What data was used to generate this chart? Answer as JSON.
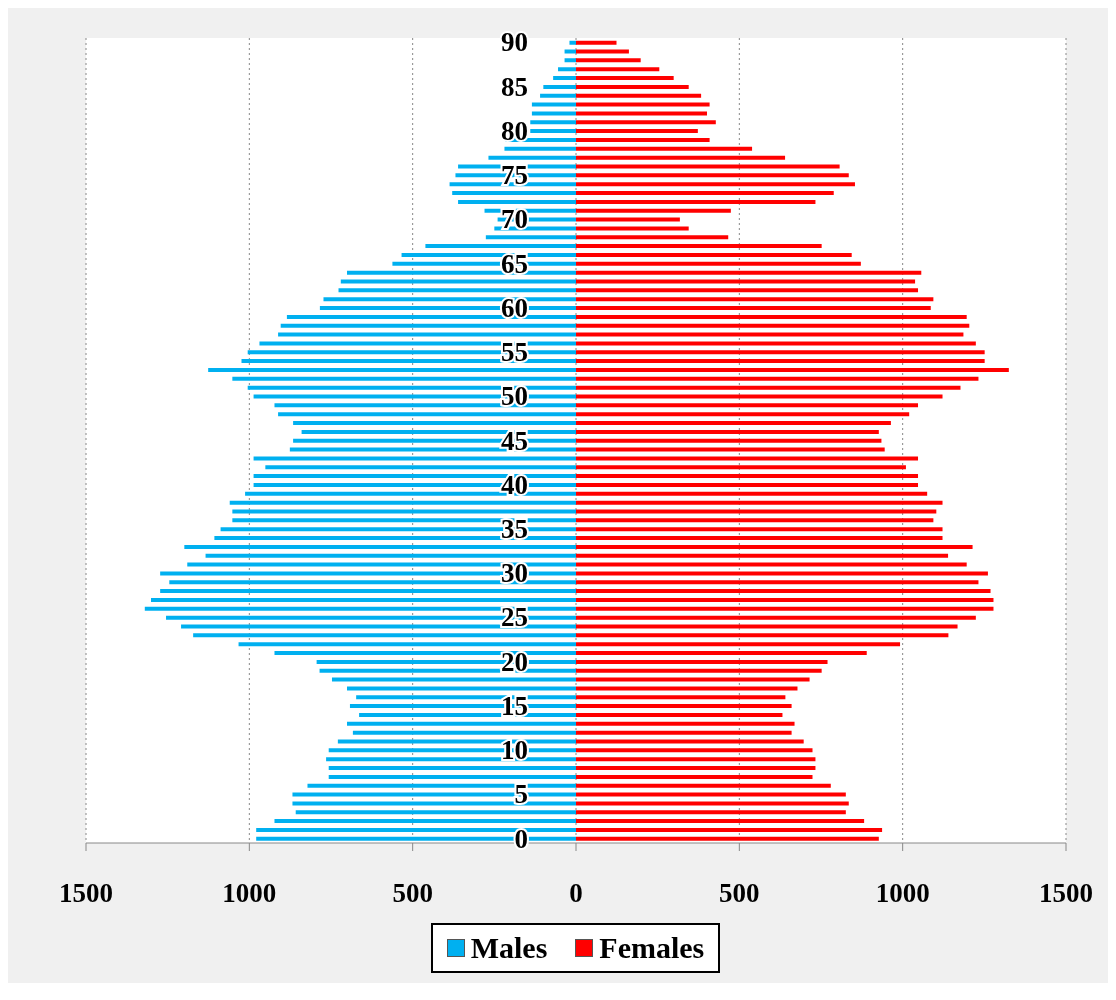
{
  "chart_data": {
    "type": "bar",
    "orientation": "horizontal",
    "stacked": true,
    "categories": [
      "90",
      null,
      null,
      null,
      null,
      "85",
      null,
      null,
      null,
      null,
      "80",
      null,
      null,
      null,
      null,
      "75",
      null,
      null,
      null,
      null,
      "70",
      null,
      null,
      null,
      null,
      "65",
      null,
      null,
      null,
      null,
      "60",
      null,
      null,
      null,
      null,
      "55",
      null,
      null,
      null,
      null,
      "50",
      null,
      null,
      null,
      null,
      "45",
      null,
      null,
      null,
      null,
      "40",
      null,
      null,
      null,
      null,
      "35",
      null,
      null,
      null,
      null,
      "30",
      null,
      null,
      null,
      null,
      "25",
      null,
      null,
      null,
      null,
      "20",
      null,
      null,
      null,
      null,
      "15",
      null,
      null,
      null,
      null,
      "10",
      null,
      null,
      null,
      null,
      "5",
      null,
      null,
      null,
      null,
      "0"
    ],
    "series": [
      {
        "name": "Males",
        "color": "#00b0f0",
        "values": [
          -20,
          -35,
          -35,
          -55,
          -70,
          -100,
          -110,
          -135,
          -135,
          -140,
          -140,
          -216,
          -219,
          -268,
          -361,
          -369,
          -387,
          -379,
          -361,
          -280,
          -240,
          -250,
          -276,
          -461,
          -534,
          -562,
          -701,
          -720,
          -727,
          -773,
          -784,
          -885,
          -904,
          -912,
          -969,
          -1005,
          -1024,
          -1126,
          -1052,
          -1005,
          -987,
          -923,
          -912,
          -866,
          -840,
          -866,
          -876,
          -987,
          -951,
          -987,
          -987,
          -1013,
          -1060,
          -1052,
          -1052,
          -1088,
          -1107,
          -1199,
          -1134,
          -1190,
          -1273,
          -1245,
          -1273,
          -1301,
          -1320,
          -1255,
          -1209,
          -1172,
          -1033,
          -923,
          -794,
          -785,
          -747,
          -701,
          -673,
          -692,
          -664,
          -701,
          -683,
          -729,
          -757,
          -765,
          -757,
          -757,
          -822,
          -868,
          -868,
          -858,
          -923,
          -979,
          -979
        ]
      },
      {
        "name": "Females",
        "color": "#ff0000",
        "values": [
          124,
          162,
          198,
          255,
          299,
          345,
          383,
          409,
          401,
          428,
          373,
          409,
          539,
          640,
          807,
          835,
          854,
          789,
          733,
          474,
          318,
          345,
          466,
          752,
          844,
          872,
          1057,
          1038,
          1047,
          1094,
          1086,
          1196,
          1204,
          1186,
          1224,
          1251,
          1251,
          1325,
          1232,
          1177,
          1122,
          1047,
          1020,
          964,
          927,
          935,
          945,
          1047,
          1010,
          1047,
          1047,
          1075,
          1122,
          1103,
          1094,
          1122,
          1122,
          1214,
          1139,
          1196,
          1261,
          1232,
          1269,
          1278,
          1278,
          1224,
          1168,
          1140,
          992,
          890,
          770,
          752,
          715,
          678,
          641,
          660,
          632,
          669,
          660,
          697,
          724,
          733,
          733,
          724,
          780,
          826,
          835,
          826,
          882,
          937,
          927
        ]
      }
    ],
    "xlim": [
      -1500,
      1500
    ],
    "xticks": [
      {
        "value": -1500,
        "label": "1500"
      },
      {
        "value": -1000,
        "label": "1000"
      },
      {
        "value": -500,
        "label": "500"
      },
      0,
      500,
      1000,
      1500
    ],
    "grid": "x",
    "legend": "bottom"
  }
}
